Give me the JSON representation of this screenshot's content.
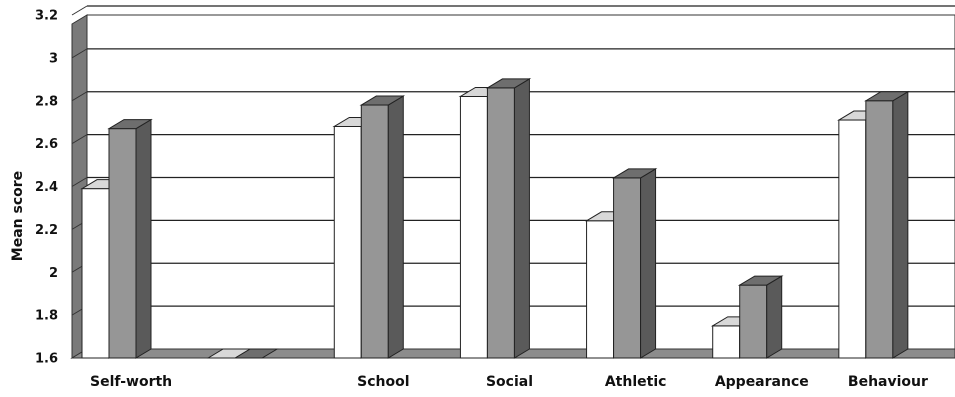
{
  "chart_data": {
    "type": "bar",
    "style": "3d-clustered",
    "categories": [
      "Self-worth",
      "",
      "School",
      "Social",
      "Athletic",
      "Appearance",
      "Behaviour"
    ],
    "series": [
      {
        "values": [
          2.39,
          1.6,
          2.68,
          2.82,
          2.24,
          1.75,
          2.71
        ],
        "color": "#ffffff"
      },
      {
        "values": [
          2.67,
          1.6,
          2.78,
          2.86,
          2.44,
          1.94,
          2.8
        ],
        "color": "#969696"
      }
    ],
    "yticks": [
      "1.6",
      "1.8",
      "2",
      "2.2",
      "2.4",
      "2.6",
      "2.8",
      "3",
      "3.2"
    ],
    "ylim": [
      1.6,
      3.2
    ],
    "ylabel": "Mean score",
    "xlabel": "",
    "title": "",
    "grid": true,
    "legend": "none"
  }
}
